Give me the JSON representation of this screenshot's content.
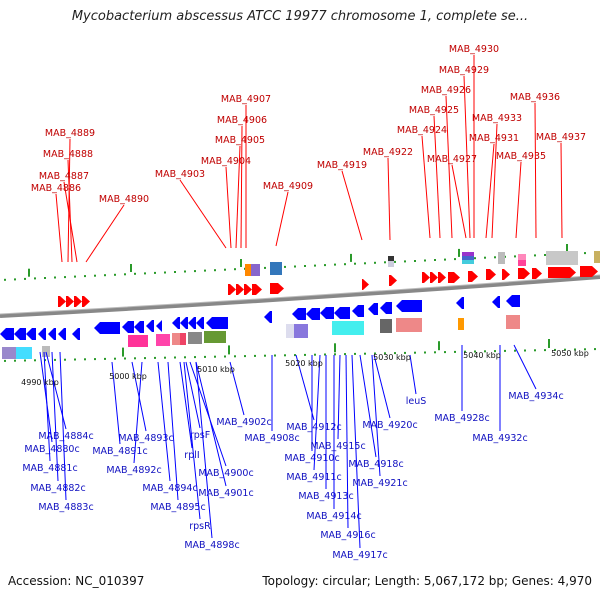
{
  "title": "Mycobacterium abscessus ATCC 19977 chromosome 1, complete se...",
  "footer": {
    "accession": "Accession: NC_010397",
    "info": "Topology: circular; Length: 5,067,172 bp; Genes: 4,970"
  },
  "colors": {
    "forward_gene": "#ff0000",
    "reverse_gene": "#0000ff",
    "backbone": "#888888",
    "tick": "#2a9a2a"
  },
  "scale_ticks": [
    "4990 kbp",
    "5000 kbp",
    "5010 kbp",
    "5020 kbp",
    "5030 kbp",
    "5040 kbp",
    "5050 kbp"
  ],
  "forward_labels": [
    "MAB_4889",
    "MAB_4888",
    "MAB_4887",
    "MAB_4886",
    "MAB_4890",
    "MAB_4907",
    "MAB_4906",
    "MAB_4905",
    "MAB_4904",
    "MAB_4903",
    "MAB_4909",
    "MAB_4919",
    "MAB_4922",
    "MAB_4930",
    "MAB_4929",
    "MAB_4926",
    "MAB_4925",
    "MAB_4924",
    "MAB_4927",
    "MAB_4933",
    "MAB_4931",
    "MAB_4936",
    "MAB_4935",
    "MAB_4937"
  ],
  "reverse_labels": [
    "MAB_4884c",
    "MAB_4880c",
    "MAB_4881c",
    "MAB_4882c",
    "MAB_4883c",
    "MAB_4893c",
    "MAB_4891c",
    "MAB_4892c",
    "MAB_4894c",
    "MAB_4895c",
    "rpsF",
    "rplI",
    "MAB_4900c",
    "MAB_4901c",
    "rpsR",
    "MAB_4898c",
    "MAB_4902c",
    "MAB_4908c",
    "MAB_4912c",
    "MAB_4910c",
    "MAB_4911c",
    "MAB_4913c",
    "MAB_4914c",
    "MAB_4916c",
    "MAB_4917c",
    "MAB_4915c",
    "MAB_4918c",
    "MAB_4920c",
    "MAB_4921c",
    "leuS",
    "MAB_4928c",
    "MAB_4932c",
    "MAB_4934c"
  ]
}
